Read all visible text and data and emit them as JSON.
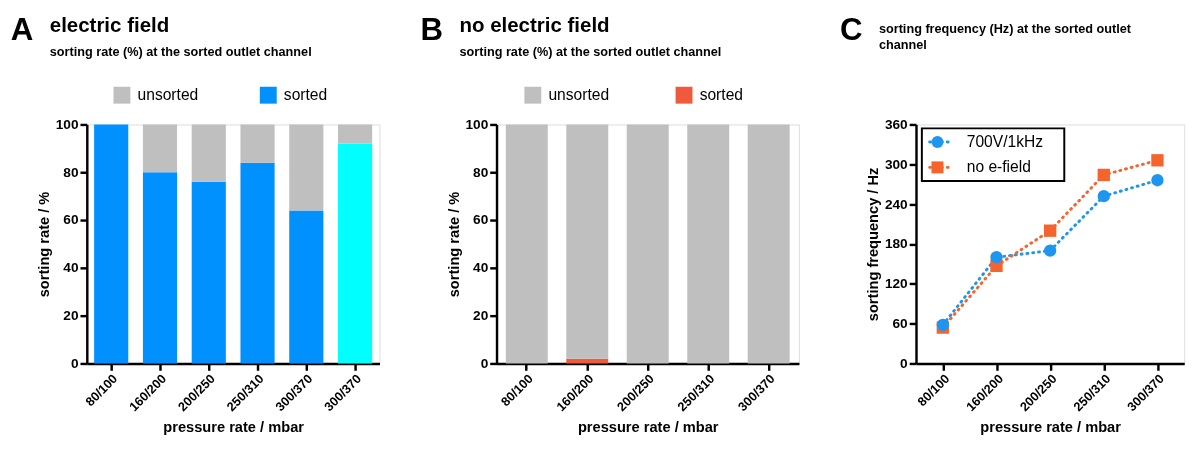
{
  "chart_data": [
    {
      "type": "bar",
      "title": "electric field",
      "subtitle": "sorting rate (%) at the sorted outlet channel",
      "annotations": [
        "A"
      ],
      "xlabel": "pressure rate / mbar",
      "ylabel": "sorting rate / %",
      "categories": [
        "80/100",
        "160/200",
        "200/250",
        "250/310",
        "300/370",
        "300/370"
      ],
      "stacked": true,
      "legend": "top",
      "grid": false,
      "ylim": [
        0,
        100
      ],
      "yticks": [
        0,
        20,
        40,
        60,
        80,
        100
      ],
      "series": [
        {
          "name": "sorted",
          "color": "#0091ff",
          "colors": [
            "#0091ff",
            "#0091ff",
            "#0091ff",
            "#0091ff",
            "#0091ff",
            "#00ffff"
          ],
          "values": [
            100,
            80,
            76,
            84,
            64,
            92
          ]
        },
        {
          "name": "unsorted",
          "color": "#bfbfbf",
          "values": [
            0,
            20,
            24,
            16,
            36,
            8
          ]
        }
      ]
    },
    {
      "type": "bar",
      "title": "no electric field",
      "subtitle": "sorting rate (%) at the sorted outlet channel",
      "annotations": [
        "B"
      ],
      "xlabel": "pressure rate / mbar",
      "ylabel": "sorting rate / %",
      "categories": [
        "80/100",
        "160/200",
        "200/250",
        "250/310",
        "300/370"
      ],
      "stacked": true,
      "legend": "top",
      "grid": false,
      "ylim": [
        0,
        100
      ],
      "yticks": [
        0,
        20,
        40,
        60,
        80,
        100
      ],
      "series": [
        {
          "name": "sorted",
          "color": "#f05a3c",
          "values": [
            0,
            2,
            0,
            0,
            0
          ]
        },
        {
          "name": "unsorted",
          "color": "#bfbfbf",
          "values": [
            100,
            98,
            100,
            100,
            100
          ]
        }
      ]
    },
    {
      "type": "line",
      "subtitle": "sorting frequency (Hz) at the sorted outlet channel",
      "annotations": [
        "C"
      ],
      "xlabel": "pressure rate / mbar",
      "ylabel": "sorting frequency / Hz",
      "categories": [
        "80/100",
        "160/200",
        "200/250",
        "250/310",
        "300/370"
      ],
      "legend": "top left",
      "grid": false,
      "line_style": "dotted",
      "ylim": [
        0,
        360
      ],
      "yticks": [
        0,
        60,
        120,
        180,
        240,
        300,
        360
      ],
      "series": [
        {
          "name": "700V/1kHz",
          "color": "#1e96f0",
          "marker": "circle",
          "values": [
            58,
            160,
            170,
            252,
            276
          ]
        },
        {
          "name": "no e-field",
          "color": "#f5642d",
          "marker": "square",
          "values": [
            54,
            147,
            200,
            284,
            306
          ]
        }
      ]
    }
  ]
}
